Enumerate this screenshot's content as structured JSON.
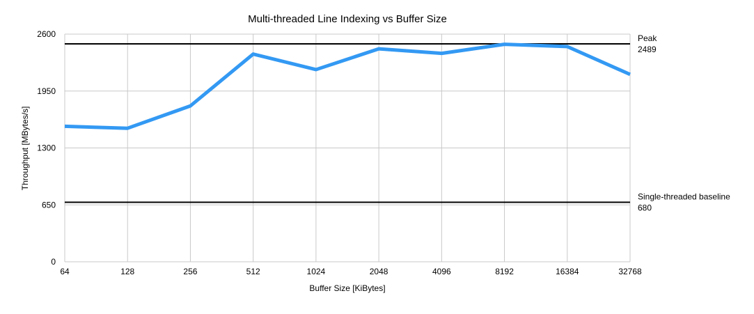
{
  "chart_data": {
    "type": "line",
    "title": "Multi-threaded Line Indexing vs Buffer Size",
    "xlabel": "Buffer Size [KiBytes]",
    "ylabel": "Throughput [MBytes/s]",
    "categories": [
      "64",
      "128",
      "256",
      "512",
      "1024",
      "2048",
      "4096",
      "8192",
      "16384",
      "32768"
    ],
    "series": [
      {
        "values": [
          1547,
          1525,
          1780,
          2372,
          2195,
          2432,
          2380,
          2484,
          2458,
          2140
        ],
        "color": "#3399f3"
      }
    ],
    "ylim": [
      0,
      2600
    ],
    "yticks": [
      0,
      650,
      1300,
      1950,
      2600
    ],
    "grid": true,
    "reference_lines": [
      {
        "label": "Peak",
        "value": 2489,
        "value_label": "2489",
        "color": "#000000"
      },
      {
        "label": "Single-threaded baseline",
        "value": 680,
        "value_label": "680",
        "color": "#000000"
      }
    ]
  }
}
